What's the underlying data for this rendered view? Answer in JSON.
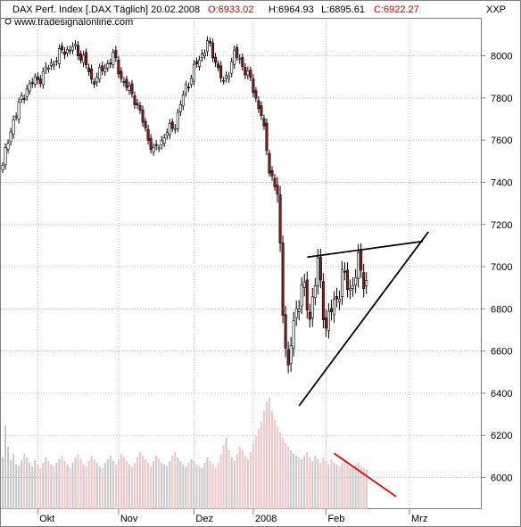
{
  "header": {
    "name": "DAX Perf. Index [.DAX Täglich] 20.02.2008",
    "open": "O:6933.02",
    "high": "H:6964.93",
    "low": "L:6895.61",
    "close": "C:6922.27",
    "corner": "XXP",
    "source": "www.tradesignalonline.com"
  },
  "colors": {
    "up": "#ffffff",
    "down": "#8b1a1a",
    "wick": "#000000",
    "volume_up": "#c8c8c8",
    "volume_down": "#f2c4c4",
    "triangle": "#000000",
    "volume_trend": "#e00000",
    "header_red": "#c00000"
  },
  "chart_data": {
    "type": "candlestick",
    "y_axis": {
      "ticks": [
        6000,
        6200,
        6400,
        6600,
        6800,
        7000,
        7200,
        7400,
        7600,
        7800,
        8000
      ],
      "range": [
        5850,
        8180
      ],
      "side": "right"
    },
    "x_axis": {
      "labels": [
        "Okt",
        "Nov",
        "Dez",
        "2008",
        "Feb",
        "Mrz"
      ]
    },
    "grid": true,
    "series": [
      {
        "kind": "price",
        "anchors": [
          [
            0,
            7480
          ],
          [
            4,
            7700
          ],
          [
            9,
            7850
          ],
          [
            14,
            7900
          ],
          [
            18,
            7960
          ],
          [
            22,
            8020
          ],
          [
            26,
            8040
          ],
          [
            30,
            7990
          ],
          [
            33,
            7880
          ],
          [
            37,
            7930
          ],
          [
            41,
            8000
          ],
          [
            45,
            7870
          ],
          [
            49,
            7800
          ],
          [
            53,
            7650
          ],
          [
            56,
            7540
          ],
          [
            60,
            7620
          ],
          [
            64,
            7680
          ],
          [
            68,
            7850
          ],
          [
            72,
            7960
          ],
          [
            76,
            8060
          ],
          [
            79,
            7980
          ],
          [
            82,
            7860
          ],
          [
            86,
            8010
          ],
          [
            89,
            7960
          ],
          [
            92,
            7880
          ],
          [
            96,
            7720
          ],
          [
            99,
            7470
          ],
          [
            102,
            7330
          ],
          [
            104,
            6820
          ],
          [
            106,
            6480
          ],
          [
            108,
            6750
          ],
          [
            111,
            6900
          ],
          [
            114,
            6780
          ],
          [
            117,
            7000
          ],
          [
            120,
            6720
          ],
          [
            123,
            6820
          ],
          [
            126,
            6950
          ],
          [
            129,
            6900
          ],
          [
            132,
            7000
          ],
          [
            135,
            6930
          ]
        ]
      },
      {
        "kind": "volume",
        "values": [
          58,
          94,
          70,
          55,
          62,
          50,
          48,
          55,
          62,
          58,
          52,
          48,
          55,
          50,
          46,
          52,
          58,
          54,
          50,
          48,
          52,
          56,
          60,
          54,
          50,
          46,
          52,
          58,
          62,
          56,
          50,
          48,
          54,
          60,
          56,
          52,
          48,
          46,
          52,
          56,
          60,
          54,
          50,
          56,
          62,
          58,
          54,
          50,
          48,
          52,
          58,
          64,
          60,
          56,
          52,
          48,
          54,
          60,
          56,
          52,
          50,
          48,
          54,
          60,
          64,
          58,
          54,
          50,
          48,
          52,
          56,
          54,
          50,
          48,
          46,
          52,
          58,
          54,
          50,
          46,
          52,
          62,
          72,
          80,
          66,
          58,
          54,
          62,
          70,
          66,
          60,
          56,
          64,
          74,
          82,
          90,
          98,
          110,
          120,
          125,
          110,
          100,
          92,
          86,
          80,
          74,
          70,
          66,
          62,
          60,
          58,
          56,
          60,
          64,
          58,
          54,
          60,
          56,
          52,
          58,
          54,
          50,
          56,
          52,
          50,
          48,
          52,
          56,
          50,
          46,
          48,
          50,
          52,
          48,
          46,
          44
        ]
      }
    ],
    "annotations": [
      {
        "type": "line",
        "name": "triangle-upper",
        "from": [
          113,
          7045
        ],
        "to": [
          156,
          7120
        ]
      },
      {
        "type": "line",
        "name": "triangle-lower",
        "from": [
          110,
          6340
        ],
        "to": [
          158,
          7165
        ]
      },
      {
        "type": "line",
        "name": "volume-trend",
        "from": [
          123,
          6115
        ],
        "to": [
          146,
          5910
        ]
      }
    ]
  }
}
